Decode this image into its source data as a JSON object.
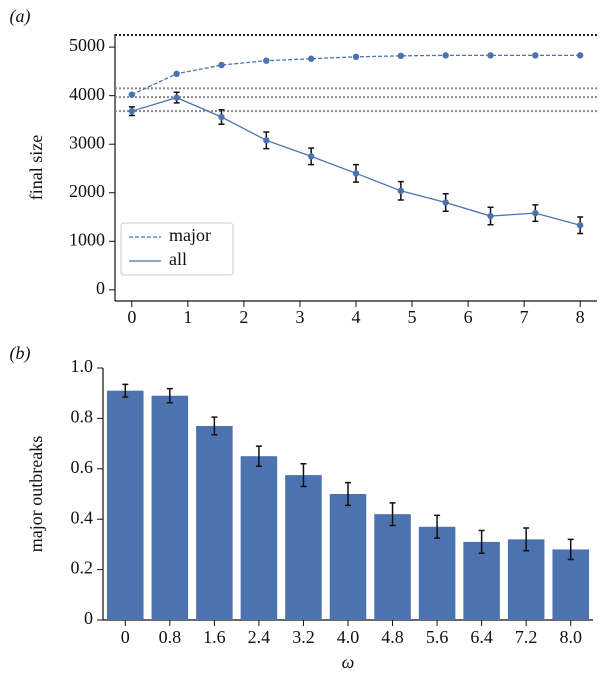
{
  "chart_data": [
    {
      "type": "line",
      "panel_label": "(a)",
      "y_label": "final size",
      "x": [
        0,
        0.8,
        1.6,
        2.4,
        3.2,
        4.0,
        4.8,
        5.6,
        6.4,
        7.2,
        8.0
      ],
      "xlim": [
        -0.3,
        8.3
      ],
      "xticks": [
        0,
        1,
        2,
        3,
        4,
        5,
        6,
        7,
        8
      ],
      "ylim": [
        -230,
        5270
      ],
      "yticks": [
        0,
        1000,
        2000,
        3000,
        4000,
        5000
      ],
      "legend": "lower left",
      "series": [
        {
          "name": "major",
          "color": "#4c72b0",
          "dash": true,
          "values": [
            4020,
            4450,
            4630,
            4720,
            4760,
            4800,
            4820,
            4830,
            4830,
            4830,
            4830
          ]
        },
        {
          "name": "all",
          "color": "#4c72b0",
          "dash": false,
          "values": [
            3680,
            3960,
            3560,
            3080,
            2750,
            2400,
            2040,
            1800,
            1520,
            1580,
            1330
          ],
          "errors": [
            90,
            110,
            150,
            170,
            170,
            180,
            190,
            180,
            180,
            170,
            170
          ]
        }
      ],
      "hlines": [
        {
          "value": 5250,
          "color": "#222222"
        },
        {
          "value": 4150,
          "color": "#888888"
        },
        {
          "value": 3970,
          "color": "#888888"
        },
        {
          "value": 3680,
          "color": "#888888"
        }
      ]
    },
    {
      "type": "bar",
      "panel_label": "(b)",
      "y_label": "major outbreaks",
      "x_label": "ω",
      "categories": [
        "0",
        "0.8",
        "1.6",
        "2.4",
        "3.2",
        "4.0",
        "4.8",
        "5.6",
        "6.4",
        "7.2",
        "8.0"
      ],
      "values": [
        0.91,
        0.89,
        0.77,
        0.65,
        0.575,
        0.5,
        0.42,
        0.37,
        0.31,
        0.32,
        0.28
      ],
      "errors": [
        0.025,
        0.028,
        0.035,
        0.04,
        0.045,
        0.045,
        0.045,
        0.045,
        0.045,
        0.045,
        0.04
      ],
      "color": "#4c72b0",
      "ylim": [
        0,
        1
      ],
      "yticks": [
        0,
        0.2,
        0.4,
        0.6,
        0.8,
        {
          "value": 1,
          "label": "1.0"
        }
      ]
    }
  ]
}
